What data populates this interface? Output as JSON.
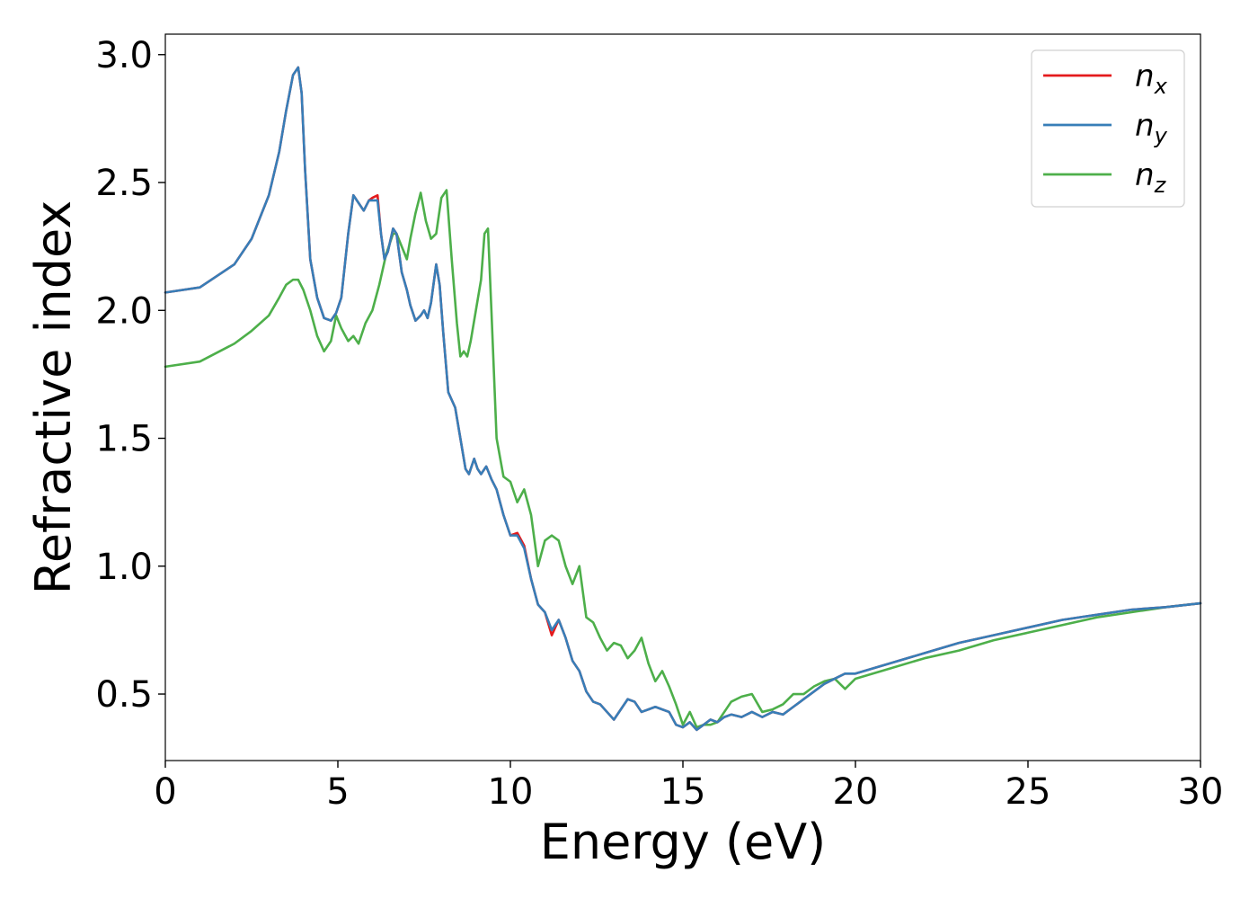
{
  "chart_data": {
    "type": "line",
    "title": "",
    "xlabel": "Energy (eV)",
    "ylabel": "Refractive index",
    "xlim": [
      0,
      30
    ],
    "ylim": [
      0.24,
      3.08
    ],
    "xticks": [
      0,
      5,
      10,
      15,
      20,
      25,
      30
    ],
    "yticks": [
      0.5,
      1.0,
      1.5,
      2.0,
      2.5,
      3.0
    ],
    "xtick_labels": [
      "0",
      "5",
      "10",
      "15",
      "20",
      "25",
      "30"
    ],
    "ytick_labels": [
      "0.5",
      "1.0",
      "1.5",
      "2.0",
      "2.5",
      "3.0"
    ],
    "grid": false,
    "legend_position": "top-right",
    "series": [
      {
        "name": "n_x",
        "label_main": "n",
        "label_sub": "x",
        "color": "#e41a1c",
        "x": [
          0,
          1,
          2,
          2.5,
          3,
          3.3,
          3.5,
          3.7,
          3.85,
          3.95,
          4.05,
          4.2,
          4.4,
          4.6,
          4.8,
          4.95,
          5.1,
          5.3,
          5.45,
          5.6,
          5.75,
          5.9,
          6.0,
          6.15,
          6.25,
          6.35,
          6.45,
          6.6,
          6.7,
          6.85,
          7.0,
          7.1,
          7.25,
          7.4,
          7.5,
          7.6,
          7.7,
          7.85,
          7.95,
          8.05,
          8.2,
          8.4,
          8.55,
          8.7,
          8.8,
          8.95,
          9.05,
          9.15,
          9.3,
          9.45,
          9.6,
          9.8,
          10.0,
          10.2,
          10.4,
          10.6,
          10.8,
          11.0,
          11.2,
          11.4,
          11.6,
          11.8,
          12.0,
          12.2,
          12.4,
          12.6,
          12.8,
          13.0,
          13.2,
          13.4,
          13.6,
          13.8,
          14.0,
          14.2,
          14.4,
          14.6,
          14.8,
          15.0,
          15.2,
          15.4,
          15.6,
          15.8,
          16.0,
          16.2,
          16.4,
          16.7,
          17.0,
          17.3,
          17.6,
          17.9,
          18.2,
          18.5,
          18.8,
          19.1,
          19.4,
          19.7,
          20,
          21,
          22,
          23,
          24,
          25,
          26,
          27,
          28,
          29,
          30
        ],
        "y": [
          2.07,
          2.09,
          2.18,
          2.28,
          2.45,
          2.62,
          2.78,
          2.92,
          2.95,
          2.85,
          2.55,
          2.2,
          2.05,
          1.97,
          1.96,
          1.99,
          2.05,
          2.3,
          2.45,
          2.42,
          2.39,
          2.43,
          2.44,
          2.45,
          2.3,
          2.2,
          2.23,
          2.32,
          2.3,
          2.15,
          2.08,
          2.02,
          1.96,
          1.98,
          2.0,
          1.97,
          2.03,
          2.18,
          2.1,
          1.92,
          1.68,
          1.62,
          1.5,
          1.38,
          1.36,
          1.42,
          1.38,
          1.36,
          1.39,
          1.34,
          1.3,
          1.2,
          1.12,
          1.13,
          1.08,
          0.95,
          0.85,
          0.82,
          0.73,
          0.79,
          0.72,
          0.63,
          0.59,
          0.51,
          0.47,
          0.46,
          0.43,
          0.4,
          0.44,
          0.48,
          0.47,
          0.43,
          0.44,
          0.45,
          0.44,
          0.43,
          0.38,
          0.37,
          0.39,
          0.36,
          0.38,
          0.4,
          0.39,
          0.41,
          0.42,
          0.41,
          0.43,
          0.41,
          0.43,
          0.42,
          0.45,
          0.48,
          0.51,
          0.54,
          0.56,
          0.58,
          0.58,
          0.62,
          0.66,
          0.7,
          0.73,
          0.76,
          0.79,
          0.81,
          0.83,
          0.84,
          0.855
        ]
      },
      {
        "name": "n_y",
        "label_main": "n",
        "label_sub": "y",
        "color": "#377eb8",
        "x": [
          0,
          1,
          2,
          2.5,
          3,
          3.3,
          3.5,
          3.7,
          3.85,
          3.95,
          4.05,
          4.2,
          4.4,
          4.6,
          4.8,
          4.95,
          5.1,
          5.3,
          5.45,
          5.6,
          5.75,
          5.9,
          6.0,
          6.15,
          6.25,
          6.35,
          6.45,
          6.6,
          6.7,
          6.85,
          7.0,
          7.1,
          7.25,
          7.4,
          7.5,
          7.6,
          7.7,
          7.85,
          7.95,
          8.05,
          8.2,
          8.4,
          8.55,
          8.7,
          8.8,
          8.95,
          9.05,
          9.15,
          9.3,
          9.45,
          9.6,
          9.8,
          10.0,
          10.2,
          10.4,
          10.6,
          10.8,
          11.0,
          11.2,
          11.4,
          11.6,
          11.8,
          12.0,
          12.2,
          12.4,
          12.6,
          12.8,
          13.0,
          13.2,
          13.4,
          13.6,
          13.8,
          14.0,
          14.2,
          14.4,
          14.6,
          14.8,
          15.0,
          15.2,
          15.4,
          15.6,
          15.8,
          16.0,
          16.2,
          16.4,
          16.7,
          17.0,
          17.3,
          17.6,
          17.9,
          18.2,
          18.5,
          18.8,
          19.1,
          19.4,
          19.7,
          20,
          21,
          22,
          23,
          24,
          25,
          26,
          27,
          28,
          29,
          30
        ],
        "y": [
          2.07,
          2.09,
          2.18,
          2.28,
          2.45,
          2.62,
          2.78,
          2.92,
          2.95,
          2.85,
          2.55,
          2.2,
          2.05,
          1.97,
          1.96,
          1.99,
          2.05,
          2.3,
          2.45,
          2.42,
          2.39,
          2.43,
          2.43,
          2.43,
          2.3,
          2.2,
          2.23,
          2.32,
          2.3,
          2.15,
          2.08,
          2.02,
          1.96,
          1.98,
          2.0,
          1.97,
          2.03,
          2.18,
          2.1,
          1.92,
          1.68,
          1.62,
          1.5,
          1.38,
          1.36,
          1.42,
          1.38,
          1.36,
          1.39,
          1.34,
          1.3,
          1.2,
          1.12,
          1.12,
          1.07,
          0.95,
          0.85,
          0.82,
          0.75,
          0.79,
          0.72,
          0.63,
          0.59,
          0.51,
          0.47,
          0.46,
          0.43,
          0.4,
          0.44,
          0.48,
          0.47,
          0.43,
          0.44,
          0.45,
          0.44,
          0.43,
          0.38,
          0.37,
          0.39,
          0.36,
          0.38,
          0.4,
          0.39,
          0.41,
          0.42,
          0.41,
          0.43,
          0.41,
          0.43,
          0.42,
          0.45,
          0.48,
          0.51,
          0.54,
          0.56,
          0.58,
          0.58,
          0.62,
          0.66,
          0.7,
          0.73,
          0.76,
          0.79,
          0.81,
          0.83,
          0.84,
          0.855
        ]
      },
      {
        "name": "n_z",
        "label_main": "n",
        "label_sub": "z",
        "color": "#4daf4a",
        "x": [
          0,
          1,
          2,
          2.5,
          3,
          3.3,
          3.5,
          3.7,
          3.85,
          4.0,
          4.2,
          4.4,
          4.6,
          4.8,
          4.95,
          5.1,
          5.3,
          5.45,
          5.6,
          5.8,
          6.0,
          6.2,
          6.4,
          6.6,
          6.7,
          6.85,
          7.0,
          7.1,
          7.25,
          7.4,
          7.55,
          7.7,
          7.85,
          8.0,
          8.15,
          8.3,
          8.45,
          8.55,
          8.65,
          8.75,
          8.85,
          9.0,
          9.15,
          9.25,
          9.35,
          9.45,
          9.6,
          9.8,
          10.0,
          10.2,
          10.4,
          10.6,
          10.8,
          11.0,
          11.2,
          11.4,
          11.6,
          11.8,
          12.0,
          12.2,
          12.4,
          12.6,
          12.8,
          13.0,
          13.2,
          13.4,
          13.6,
          13.8,
          14.0,
          14.2,
          14.4,
          14.6,
          14.8,
          15.0,
          15.2,
          15.4,
          15.6,
          15.8,
          16.0,
          16.2,
          16.4,
          16.7,
          17.0,
          17.3,
          17.6,
          17.9,
          18.2,
          18.5,
          18.8,
          19.1,
          19.4,
          19.7,
          20,
          21,
          22,
          23,
          24,
          25,
          26,
          27,
          28,
          29,
          30
        ],
        "y": [
          1.78,
          1.8,
          1.87,
          1.92,
          1.98,
          2.05,
          2.1,
          2.12,
          2.12,
          2.08,
          2.0,
          1.9,
          1.84,
          1.88,
          1.98,
          1.93,
          1.88,
          1.9,
          1.87,
          1.95,
          2.0,
          2.1,
          2.22,
          2.3,
          2.3,
          2.25,
          2.2,
          2.28,
          2.38,
          2.46,
          2.35,
          2.28,
          2.3,
          2.44,
          2.47,
          2.2,
          1.95,
          1.82,
          1.84,
          1.82,
          1.88,
          2.0,
          2.12,
          2.3,
          2.32,
          2.0,
          1.5,
          1.35,
          1.33,
          1.25,
          1.3,
          1.2,
          1.0,
          1.1,
          1.12,
          1.1,
          1.0,
          0.93,
          1.0,
          0.8,
          0.78,
          0.72,
          0.67,
          0.7,
          0.69,
          0.64,
          0.67,
          0.72,
          0.62,
          0.55,
          0.59,
          0.53,
          0.46,
          0.38,
          0.43,
          0.37,
          0.38,
          0.38,
          0.39,
          0.43,
          0.47,
          0.49,
          0.5,
          0.43,
          0.44,
          0.46,
          0.5,
          0.5,
          0.53,
          0.55,
          0.56,
          0.52,
          0.56,
          0.6,
          0.64,
          0.67,
          0.71,
          0.74,
          0.77,
          0.8,
          0.82,
          0.84,
          0.855
        ]
      }
    ]
  }
}
